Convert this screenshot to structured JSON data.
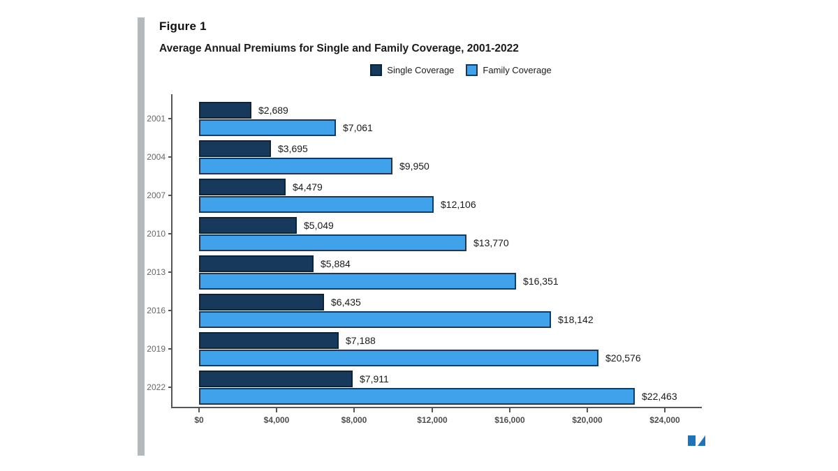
{
  "figure": {
    "label": "Figure 1"
  },
  "chart_data": {
    "type": "bar",
    "orientation": "horizontal",
    "title": "Average Annual Premiums for Single and Family Coverage, 2001-2022",
    "categories": [
      "2001",
      "2004",
      "2007",
      "2010",
      "2013",
      "2016",
      "2019",
      "2022"
    ],
    "series": [
      {
        "name": "Single Coverage",
        "color": "#17395c",
        "border_color": "#0d2438",
        "values": [
          2689,
          3695,
          4479,
          5049,
          5884,
          6435,
          7188,
          7911
        ],
        "labels": [
          "$2,689",
          "$3,695",
          "$4,479",
          "$5,049",
          "$5,884",
          "$6,435",
          "$7,188",
          "$7,911"
        ]
      },
      {
        "name": "Family Coverage",
        "color": "#41a2ec",
        "border_color": "#16395c",
        "values": [
          7061,
          9950,
          12106,
          13770,
          16351,
          18142,
          20576,
          22463
        ],
        "labels": [
          "$7,061",
          "$9,950",
          "$12,106",
          "$13,770",
          "$16,351",
          "$18,142",
          "$20,576",
          "$22,463"
        ]
      }
    ],
    "x_axis": {
      "ticks": [
        {
          "label": "$0",
          "value": 0
        },
        {
          "label": "$4,000",
          "value": 4000
        },
        {
          "label": "$8,000",
          "value": 8000
        },
        {
          "label": "$12,000",
          "value": 12000
        },
        {
          "label": "$16,000",
          "value": 16000
        },
        {
          "label": "$20,000",
          "value": 20000
        },
        {
          "label": "$24,000",
          "value": 24000
        }
      ],
      "max": 24000
    },
    "legend": {
      "position": "top",
      "items": [
        "Single Coverage",
        "Family Coverage"
      ]
    },
    "grid": false
  },
  "colors": {
    "accent_bar": "#b3b9bd",
    "axis": "#555555",
    "tick_text": "#4d4d4d",
    "year_text": "#666666",
    "value_text": "#1a1a1a",
    "logo_blue": "#1c75bc"
  }
}
